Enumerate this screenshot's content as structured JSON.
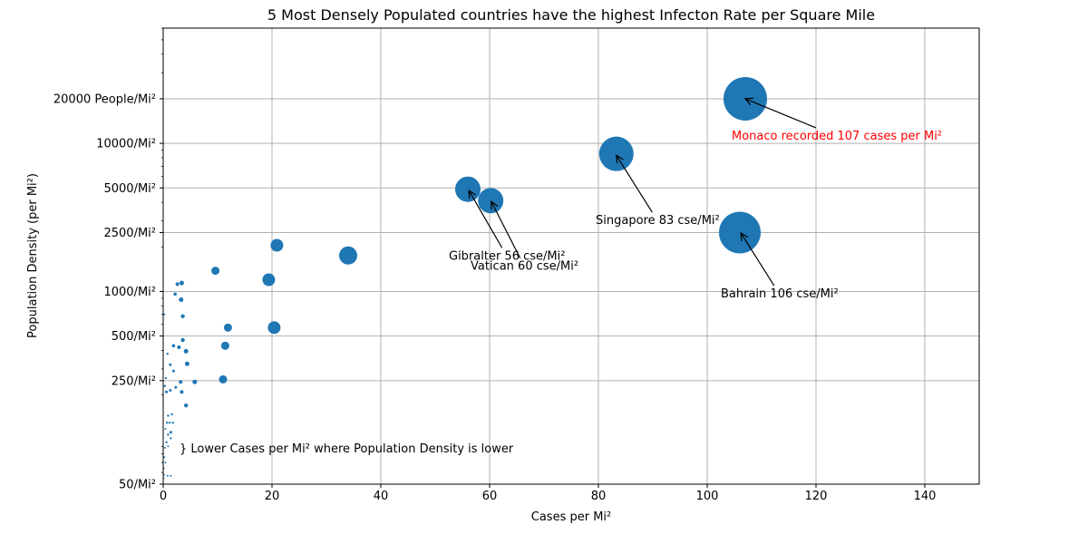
{
  "chart_data": {
    "type": "scatter",
    "title": "5 Most Densely Populated countries have the highest Infecton Rate per Square Mile",
    "xlabel": "Cases per Mi²",
    "ylabel": "Population Density (per Mi²)",
    "xlim": [
      0,
      150
    ],
    "ylim": [
      50,
      60000
    ],
    "yscale": "log",
    "grid": true,
    "x_ticks": [
      0,
      20,
      40,
      60,
      80,
      100,
      120,
      140
    ],
    "y_ticks": [
      {
        "value": 50,
        "label": "50/Mi²"
      },
      {
        "value": 250,
        "label": "250/Mi²"
      },
      {
        "value": 500,
        "label": "500/Mi²"
      },
      {
        "value": 1000,
        "label": "1000/Mi²"
      },
      {
        "value": 2500,
        "label": "2500/Mi²"
      },
      {
        "value": 5000,
        "label": "5000/Mi²"
      },
      {
        "value": 10000,
        "label": "10000/Mi²"
      },
      {
        "value": 20000,
        "label": "20000 People/Mi²"
      }
    ],
    "colors": {
      "points": "#1f77b4",
      "highlight_annotation": "#ff0000"
    },
    "points": [
      {
        "x": 107,
        "y": 20000,
        "r": 24
      },
      {
        "x": 106,
        "y": 2500,
        "r": 23
      },
      {
        "x": 83.3,
        "y": 8500,
        "r": 19
      },
      {
        "x": 56,
        "y": 4900,
        "r": 14
      },
      {
        "x": 60.2,
        "y": 4100,
        "r": 14
      },
      {
        "x": 34,
        "y": 1750,
        "r": 10
      },
      {
        "x": 20.9,
        "y": 2050,
        "r": 7
      },
      {
        "x": 19.4,
        "y": 1200,
        "r": 7
      },
      {
        "x": 20.4,
        "y": 570,
        "r": 7
      },
      {
        "x": 9.6,
        "y": 1380,
        "r": 4.5
      },
      {
        "x": 11.9,
        "y": 570,
        "r": 4.5
      },
      {
        "x": 11.4,
        "y": 430,
        "r": 4.5
      },
      {
        "x": 11,
        "y": 255,
        "r": 4.5
      },
      {
        "x": 3.4,
        "y": 1140,
        "r": 2.5
      },
      {
        "x": 2.6,
        "y": 1120,
        "r": 2
      },
      {
        "x": 2.2,
        "y": 960,
        "r": 1.8
      },
      {
        "x": 3.3,
        "y": 880,
        "r": 2.5
      },
      {
        "x": 3.6,
        "y": 680,
        "r": 2.2
      },
      {
        "x": 3.6,
        "y": 470,
        "r": 2.2
      },
      {
        "x": 1.9,
        "y": 430,
        "r": 1.8
      },
      {
        "x": 2.9,
        "y": 420,
        "r": 2
      },
      {
        "x": 4.2,
        "y": 395,
        "r": 2.5
      },
      {
        "x": 4.4,
        "y": 325,
        "r": 2.5
      },
      {
        "x": 1.3,
        "y": 320,
        "r": 1.5
      },
      {
        "x": 1.9,
        "y": 290,
        "r": 1.5
      },
      {
        "x": 5.8,
        "y": 245,
        "r": 2.5
      },
      {
        "x": 3.2,
        "y": 245,
        "r": 2
      },
      {
        "x": 2.3,
        "y": 225,
        "r": 1.5
      },
      {
        "x": 3.4,
        "y": 210,
        "r": 2
      },
      {
        "x": 1.3,
        "y": 215,
        "r": 1.5
      },
      {
        "x": 0.6,
        "y": 210,
        "r": 1.5
      },
      {
        "x": 4.2,
        "y": 170,
        "r": 2.2
      },
      {
        "x": 0.8,
        "y": 380,
        "r": 1.2
      },
      {
        "x": 0.5,
        "y": 260,
        "r": 1.2
      },
      {
        "x": 0.3,
        "y": 230,
        "r": 1.2
      },
      {
        "x": 0.2,
        "y": 700,
        "r": 1
      },
      {
        "x": 0.9,
        "y": 145,
        "r": 1.2
      },
      {
        "x": 1.6,
        "y": 148,
        "r": 1.2
      },
      {
        "x": 0.7,
        "y": 130,
        "r": 1.2
      },
      {
        "x": 1.2,
        "y": 130,
        "r": 1.2
      },
      {
        "x": 1.8,
        "y": 130,
        "r": 1.2
      },
      {
        "x": 0.4,
        "y": 118,
        "r": 1
      },
      {
        "x": 1.4,
        "y": 112,
        "r": 1.5
      },
      {
        "x": 0.9,
        "y": 108,
        "r": 1.2
      },
      {
        "x": 1.4,
        "y": 102,
        "r": 1.2
      },
      {
        "x": 0.6,
        "y": 96,
        "r": 1.2
      },
      {
        "x": 0.3,
        "y": 88,
        "r": 1
      },
      {
        "x": 0.9,
        "y": 90,
        "r": 1
      },
      {
        "x": 0.2,
        "y": 76,
        "r": 1
      },
      {
        "x": 0.4,
        "y": 70,
        "r": 1
      },
      {
        "x": 0.1,
        "y": 64,
        "r": 1
      },
      {
        "x": 0.8,
        "y": 57,
        "r": 1
      },
      {
        "x": 1.4,
        "y": 57,
        "r": 1
      },
      {
        "x": 0.2,
        "y": 58,
        "r": 0.8
      },
      {
        "x": 0.1,
        "y": 55,
        "r": 0.8
      }
    ],
    "annotations": [
      {
        "text": "Monaco recorded 107 cases per Mi²",
        "x": 107,
        "y": 20000,
        "text_x": 104.5,
        "text_y": 10600,
        "color": "#ff0000",
        "arrow": true
      },
      {
        "text": "Singapore 83 cse/Mi²",
        "x": 83.3,
        "y": 8300,
        "text_x": 79.5,
        "text_y": 2850,
        "color": "#000000",
        "arrow": true
      },
      {
        "text": "Gibralter 56 cse/Mi²",
        "x": 56.2,
        "y": 4800,
        "text_x": 52.5,
        "text_y": 1640,
        "color": "#000000",
        "arrow": true
      },
      {
        "text": "Vatican 60 cse/Mi²",
        "x": 60.3,
        "y": 4050,
        "text_x": 56.5,
        "text_y": 1400,
        "color": "#000000",
        "arrow": true
      },
      {
        "text": "Bahrain 106 cse/Mi²",
        "x": 106.2,
        "y": 2480,
        "text_x": 102.5,
        "text_y": 910,
        "color": "#000000",
        "arrow": true
      },
      {
        "text": "} Lower Cases per Mi² where Population Density is lower",
        "x": null,
        "y": null,
        "text_x": 3,
        "text_y": 82,
        "color": "#000000",
        "arrow": false
      }
    ]
  }
}
